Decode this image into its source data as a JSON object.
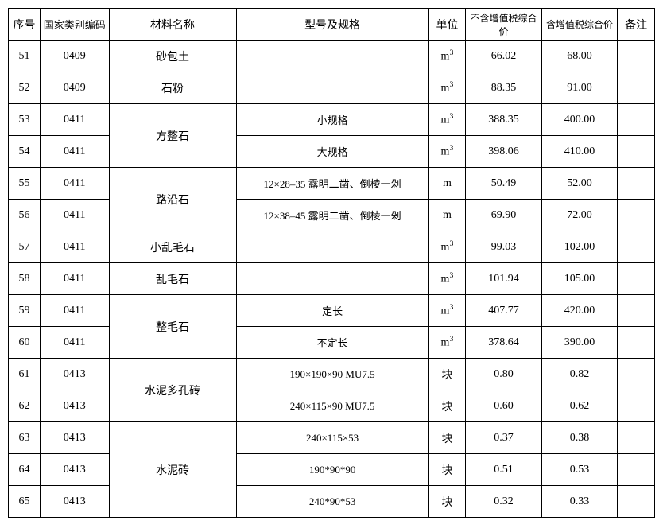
{
  "table": {
    "headers": {
      "seq": "序号",
      "code": "国家类别编码",
      "name": "材料名称",
      "spec": "型号及规格",
      "unit": "单位",
      "price_ex": "不含增值税综合价",
      "price_in": "含增值税综合价",
      "note": "备注"
    },
    "unit_m3": "m³",
    "unit_m": "m",
    "unit_block": "块",
    "rows": [
      {
        "seq": "51",
        "code": "0409",
        "name": "砂包土",
        "name_rowspan": 1,
        "spec": "",
        "unit": "m³",
        "p1": "66.02",
        "p2": "68.00"
      },
      {
        "seq": "52",
        "code": "0409",
        "name": "石粉",
        "name_rowspan": 1,
        "spec": "",
        "unit": "m³",
        "p1": "88.35",
        "p2": "91.00"
      },
      {
        "seq": "53",
        "code": "0411",
        "name": "方整石",
        "name_rowspan": 2,
        "spec": "小规格",
        "unit": "m³",
        "p1": "388.35",
        "p2": "400.00"
      },
      {
        "seq": "54",
        "code": "0411",
        "name": "",
        "name_rowspan": 0,
        "spec": "大规格",
        "unit": "m³",
        "p1": "398.06",
        "p2": "410.00"
      },
      {
        "seq": "55",
        "code": "0411",
        "name": "路沿石",
        "name_rowspan": 2,
        "spec": "12×28–35 露明二凿、倒棱一剁",
        "unit": "m",
        "p1": "50.49",
        "p2": "52.00"
      },
      {
        "seq": "56",
        "code": "0411",
        "name": "",
        "name_rowspan": 0,
        "spec": "12×38–45 露明二凿、倒棱一剁",
        "unit": "m",
        "p1": "69.90",
        "p2": "72.00"
      },
      {
        "seq": "57",
        "code": "0411",
        "name": "小乱毛石",
        "name_rowspan": 1,
        "spec": "",
        "unit": "m³",
        "p1": "99.03",
        "p2": "102.00"
      },
      {
        "seq": "58",
        "code": "0411",
        "name": "乱毛石",
        "name_rowspan": 1,
        "spec": "",
        "unit": "m³",
        "p1": "101.94",
        "p2": "105.00"
      },
      {
        "seq": "59",
        "code": "0411",
        "name": "整毛石",
        "name_rowspan": 2,
        "spec": "定长",
        "unit": "m³",
        "p1": "407.77",
        "p2": "420.00"
      },
      {
        "seq": "60",
        "code": "0411",
        "name": "",
        "name_rowspan": 0,
        "spec": "不定长",
        "unit": "m³",
        "p1": "378.64",
        "p2": "390.00"
      },
      {
        "seq": "61",
        "code": "0413",
        "name": "水泥多孔砖",
        "name_rowspan": 2,
        "spec": "190×190×90 MU7.5",
        "unit": "块",
        "p1": "0.80",
        "p2": "0.82"
      },
      {
        "seq": "62",
        "code": "0413",
        "name": "",
        "name_rowspan": 0,
        "spec": "240×115×90  MU7.5",
        "unit": "块",
        "p1": "0.60",
        "p2": "0.62"
      },
      {
        "seq": "63",
        "code": "0413",
        "name": "水泥砖",
        "name_rowspan": 3,
        "spec": "240×115×53",
        "unit": "块",
        "p1": "0.37",
        "p2": "0.38"
      },
      {
        "seq": "64",
        "code": "0413",
        "name": "",
        "name_rowspan": 0,
        "spec": "190*90*90",
        "unit": "块",
        "p1": "0.51",
        "p2": "0.53"
      },
      {
        "seq": "65",
        "code": "0413",
        "name": "",
        "name_rowspan": 0,
        "spec": "240*90*53",
        "unit": "块",
        "p1": "0.32",
        "p2": "0.33"
      }
    ],
    "colors": {
      "border": "#000000",
      "text": "#000000",
      "background": "#ffffff"
    },
    "font_size_pt": 10.5
  }
}
